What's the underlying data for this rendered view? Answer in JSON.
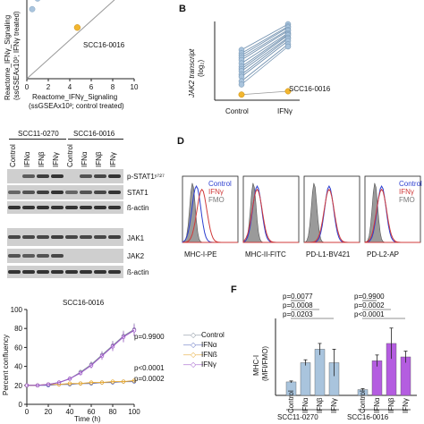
{
  "panel_a": {
    "ylabel1": "Reactome_IFNγ_Signaling",
    "ylabel2": "(ssGSEAx10³; IFNγ treated)",
    "xlabel1": "Reactome_IFNγ_Signaling",
    "xlabel2": "(ssGSEAx10³; control treated)",
    "highlight": "SCC16-0016",
    "x_ticks": [
      "0",
      "2",
      "4",
      "6",
      "8",
      "10"
    ]
  },
  "panel_b": {
    "letter": "B",
    "ylabel": "JAK2 transcript",
    "ylabel_unit": "(log₂)",
    "x_ticks": [
      "Control",
      "IFNγ"
    ],
    "highlight": "SCC16-0016"
  },
  "panel_blot": {
    "group1": "SCC11-0270",
    "group2": "SCC16-0016",
    "lanes": [
      "Control",
      "IFNα",
      "IFNβ",
      "IFNγ",
      "Control",
      "IFNα",
      "IFNβ",
      "IFNγ"
    ],
    "bands": [
      "p-STAT1ʸ⁷²⁷",
      "STAT1",
      "ß-actin",
      "JAK1",
      "JAK2",
      "ß-actin"
    ]
  },
  "panel_d": {
    "letter": "D",
    "legend": [
      "Control",
      "IFNγ",
      "FMO"
    ],
    "markers": [
      "MHC-I-PE",
      "MHC-II-FITC",
      "PD-L1-BV421",
      "PD-L2-AP"
    ]
  },
  "panel_e": {
    "title": "SCC16-0016",
    "ylabel": "Percent confluency",
    "xlabel": "Time (h)",
    "legend": [
      "Control",
      "IFNα",
      "IFNß",
      "IFNγ"
    ],
    "pvalues": [
      "p=0.9900",
      "p<0.0001",
      "p=0.0002"
    ],
    "x_ticks": [
      "0",
      "20",
      "40",
      "60",
      "80",
      "100"
    ],
    "y_ticks": [
      "0",
      "20",
      "40",
      "60",
      "80",
      "100"
    ]
  },
  "panel_f": {
    "letter": "F",
    "ylabel": "MHC-I",
    "ylabel_unit": "(MFI/FMO)",
    "group1": "SCC11-0270",
    "group2": "SCC16-0016",
    "pvalues_g1": [
      "p=0.0077",
      "p=0.0008",
      "p=0.0203"
    ],
    "pvalues_g2": [
      "p=0.9900",
      "p=0.0002",
      "p<0.0001"
    ],
    "categories": [
      "Control",
      "IFNα",
      "IFNβ",
      "IFNγ"
    ]
  },
  "colors": {
    "point": "#a9c4dd",
    "highlight": "#f2b630",
    "control": "#7f8c99",
    "ifna": "#5c6ec0",
    "ifnb": "#e6a830",
    "ifng": "#9c56c8",
    "bar_light": "#a9c4dd",
    "bar_purple": "#b45de0"
  },
  "chart_data": [
    {
      "type": "scatter",
      "name": "panel A",
      "xlabel": "Reactome_IFNγ_Signaling (ssGSEAx10³; control treated)",
      "ylabel": "Reactome_IFNγ_Signaling (ssGSEAx10³; IFNγ treated)",
      "xlim": [
        0,
        10
      ],
      "ylim": [
        0,
        10
      ],
      "identity_line": true,
      "points": [
        [
          0.5,
          7.2
        ],
        [
          1.0,
          8.3
        ],
        [
          1.4,
          8.6
        ],
        [
          1.8,
          8.9
        ],
        [
          2.3,
          8.9
        ],
        [
          2.6,
          8.5
        ],
        [
          3.0,
          8.9
        ],
        [
          3.4,
          8.9
        ],
        [
          3.8,
          8.9
        ],
        [
          4.1,
          9.3
        ],
        [
          4.6,
          9.3
        ],
        [
          5.1,
          9.3
        ],
        [
          6.3,
          9.2
        ],
        [
          4.8,
          8.5
        ],
        [
          2.9,
          8.6
        ]
      ],
      "highlight_point": {
        "label": "SCC16-0016",
        "x": 4.7,
        "y": 5.3
      }
    },
    {
      "type": "line",
      "name": "panel B",
      "categories": [
        "Control",
        "IFNγ"
      ],
      "ylabel": "JAK2 transcript (log₂)",
      "pairs": [
        [
          4.5,
          6.8
        ],
        [
          4.2,
          6.6
        ],
        [
          4.0,
          6.5
        ],
        [
          3.8,
          6.3
        ],
        [
          3.6,
          6.2
        ],
        [
          3.3,
          6.0
        ],
        [
          3.0,
          5.9
        ],
        [
          2.8,
          5.8
        ],
        [
          2.6,
          5.6
        ],
        [
          2.3,
          5.5
        ],
        [
          2.1,
          5.3
        ],
        [
          1.7,
          5.0
        ],
        [
          1.4,
          4.8
        ]
      ],
      "highlight_pair": {
        "label": "SCC16-0016",
        "values": [
          0.5,
          0.8
        ]
      }
    },
    {
      "type": "line",
      "name": "panel E",
      "title": "SCC16-0016",
      "xlabel": "Time (h)",
      "ylabel": "Percent confluency",
      "xlim": [
        0,
        100
      ],
      "ylim": [
        0,
        100
      ],
      "x": [
        0,
        10,
        20,
        30,
        40,
        50,
        60,
        70,
        80,
        90,
        100
      ],
      "series": [
        {
          "name": "Control",
          "values": [
            20,
            20,
            21,
            23,
            27,
            34,
            42,
            52,
            62,
            72,
            79
          ]
        },
        {
          "name": "IFNα",
          "values": [
            20,
            20,
            20,
            21,
            21,
            22,
            22,
            23,
            23,
            24,
            24
          ]
        },
        {
          "name": "IFNß",
          "values": [
            20,
            20,
            21,
            21,
            22,
            22,
            23,
            23,
            24,
            24,
            25
          ]
        },
        {
          "name": "IFNγ",
          "values": [
            20,
            20,
            21,
            23,
            27,
            33,
            41,
            51,
            61,
            71,
            78
          ]
        }
      ]
    },
    {
      "type": "bar",
      "name": "panel F",
      "ylabel": "MHC-I (MFI/FMO)",
      "ylim": [
        0,
        40
      ],
      "groups": [
        {
          "name": "SCC11-0270",
          "categories": [
            "Control",
            "IFNα",
            "IFNβ",
            "IFNγ"
          ],
          "values": [
            7,
            17,
            24,
            17
          ],
          "errors": [
            0.5,
            1.5,
            3,
            7
          ]
        },
        {
          "name": "SCC16-0016",
          "categories": [
            "Control",
            "IFNα",
            "IFNβ",
            "IFNγ"
          ],
          "values": [
            3,
            18,
            27,
            20
          ],
          "errors": [
            0.5,
            3,
            8,
            3
          ]
        }
      ]
    }
  ]
}
